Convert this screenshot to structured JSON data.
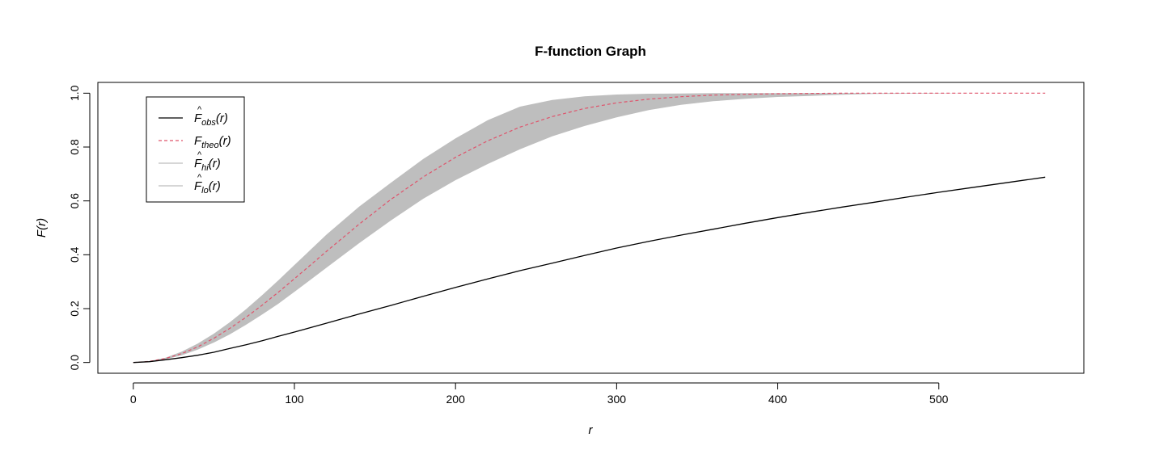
{
  "chart_data": {
    "type": "line",
    "title": "F-function Graph",
    "xlabel": "r",
    "ylabel": "F(r)",
    "xlim": [
      -22,
      590
    ],
    "ylim": [
      -0.04,
      1.04
    ],
    "x_ticks": [
      0,
      100,
      200,
      300,
      400,
      500
    ],
    "x_tick_labels": [
      "0",
      "100",
      "200",
      "300",
      "400",
      "500"
    ],
    "y_ticks": [
      0.0,
      0.2,
      0.4,
      0.6,
      0.8,
      1.0
    ],
    "y_tick_labels": [
      "0.0",
      "0.2",
      "0.4",
      "0.6",
      "0.8",
      "1.0"
    ],
    "grid": false,
    "legend_position": "top-left",
    "x": [
      0,
      10,
      20,
      30,
      40,
      50,
      60,
      70,
      80,
      90,
      100,
      120,
      140,
      160,
      180,
      200,
      220,
      240,
      260,
      280,
      300,
      320,
      340,
      360,
      380,
      400,
      420,
      440,
      460,
      480,
      500,
      520,
      540,
      566
    ],
    "series": [
      {
        "name": "obs",
        "style": "solid",
        "color": "#000000",
        "values": [
          0.0,
          0.003,
          0.01,
          0.018,
          0.027,
          0.038,
          0.052,
          0.066,
          0.081,
          0.097,
          0.113,
          0.146,
          0.18,
          0.212,
          0.246,
          0.279,
          0.31,
          0.341,
          0.369,
          0.397,
          0.425,
          0.45,
          0.473,
          0.495,
          0.517,
          0.538,
          0.558,
          0.577,
          0.595,
          0.614,
          0.632,
          0.649,
          0.666,
          0.688
        ]
      },
      {
        "name": "theo",
        "style": "dashed",
        "color": "#df536b",
        "values": [
          0.0,
          0.004,
          0.015,
          0.033,
          0.058,
          0.09,
          0.127,
          0.168,
          0.213,
          0.261,
          0.311,
          0.413,
          0.513,
          0.606,
          0.689,
          0.762,
          0.823,
          0.874,
          0.913,
          0.943,
          0.964,
          0.978,
          0.987,
          0.993,
          0.996,
          0.998,
          0.999,
          1.0,
          1.0,
          1.0,
          1.0,
          1.0,
          1.0,
          1.0
        ]
      },
      {
        "name": "hi",
        "style": "band-upper",
        "color": "#bebebe",
        "values": [
          0.0,
          0.005,
          0.018,
          0.04,
          0.07,
          0.107,
          0.15,
          0.198,
          0.25,
          0.305,
          0.362,
          0.475,
          0.578,
          0.668,
          0.756,
          0.832,
          0.9,
          0.95,
          0.975,
          0.988,
          0.995,
          0.998,
          0.999,
          1.0,
          1.0,
          1.0,
          1.0,
          1.0,
          1.0,
          1.0,
          1.0,
          1.0,
          1.0,
          1.0
        ]
      },
      {
        "name": "lo",
        "style": "band-lower",
        "color": "#bebebe",
        "values": [
          0.0,
          0.003,
          0.012,
          0.027,
          0.048,
          0.074,
          0.105,
          0.14,
          0.178,
          0.218,
          0.262,
          0.352,
          0.442,
          0.528,
          0.608,
          0.677,
          0.737,
          0.792,
          0.84,
          0.878,
          0.91,
          0.937,
          0.957,
          0.97,
          0.979,
          0.986,
          0.99,
          0.994,
          0.997,
          0.998,
          0.999,
          1.0,
          1.0,
          1.0
        ]
      }
    ],
    "legend": [
      {
        "base": "F",
        "hat": "^",
        "sub": "obs",
        "arg": "(r)",
        "style": "solid",
        "color": "#000000"
      },
      {
        "base": "F",
        "hat": "",
        "sub": "theo",
        "arg": "(r)",
        "style": "dashed",
        "color": "#df536b"
      },
      {
        "base": "F",
        "hat": "^",
        "sub": "hi",
        "arg": "(r)",
        "style": "solid",
        "color": "#bebebe"
      },
      {
        "base": "F",
        "hat": "^",
        "sub": "lo",
        "arg": "(r)",
        "style": "solid",
        "color": "#bebebe"
      }
    ]
  }
}
